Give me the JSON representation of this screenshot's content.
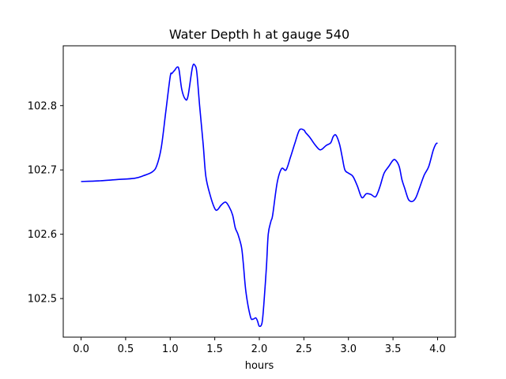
{
  "chart_data": {
    "type": "line",
    "title": "Water Depth h at gauge 540",
    "xlabel": "hours",
    "ylabel": "",
    "xlim": [
      -0.2,
      4.2
    ],
    "ylim": [
      102.44,
      102.893
    ],
    "x_ticks": [
      0.0,
      0.5,
      1.0,
      1.5,
      2.0,
      2.5,
      3.0,
      3.5,
      4.0
    ],
    "x_tick_labels": [
      "0.0",
      "0.5",
      "1.0",
      "1.5",
      "2.0",
      "2.5",
      "3.0",
      "3.5",
      "4.0"
    ],
    "y_ticks": [
      102.5,
      102.6,
      102.7,
      102.8
    ],
    "y_tick_labels": [
      "102.5",
      "102.6",
      "102.7",
      "102.8"
    ],
    "grid": false,
    "series": [
      {
        "color": "#0000ff",
        "x": [
          0.0,
          0.2,
          0.4,
          0.6,
          0.7,
          0.8,
          0.85,
          0.9,
          0.95,
          1.0,
          1.02,
          1.05,
          1.08,
          1.1,
          1.13,
          1.17,
          1.2,
          1.25,
          1.28,
          1.3,
          1.33,
          1.37,
          1.4,
          1.45,
          1.5,
          1.53,
          1.57,
          1.62,
          1.66,
          1.7,
          1.73,
          1.76,
          1.8,
          1.82,
          1.85,
          1.9,
          1.93,
          1.96,
          1.98,
          2.0,
          2.03,
          2.05,
          2.08,
          2.1,
          2.13,
          2.15,
          2.2,
          2.25,
          2.3,
          2.35,
          2.4,
          2.45,
          2.5,
          2.52,
          2.57,
          2.62,
          2.67,
          2.7,
          2.75,
          2.8,
          2.83,
          2.86,
          2.9,
          2.93,
          2.96,
          3.0,
          3.05,
          3.1,
          3.15,
          3.2,
          3.25,
          3.3,
          3.33,
          3.36,
          3.4,
          3.45,
          3.5,
          3.53,
          3.57,
          3.6,
          3.63,
          3.67,
          3.7,
          3.73,
          3.76,
          3.8,
          3.85,
          3.9,
          3.95,
          3.98,
          4.0
        ],
        "y": [
          102.682,
          102.683,
          102.685,
          102.687,
          102.691,
          102.697,
          102.707,
          102.735,
          102.79,
          102.845,
          102.85,
          102.855,
          102.86,
          102.855,
          102.825,
          102.81,
          102.815,
          102.86,
          102.862,
          102.85,
          102.8,
          102.74,
          102.69,
          102.66,
          102.64,
          102.638,
          102.645,
          102.65,
          102.643,
          102.63,
          102.61,
          102.6,
          102.58,
          102.555,
          102.51,
          102.472,
          102.468,
          102.47,
          102.465,
          102.457,
          102.462,
          102.49,
          102.55,
          102.6,
          102.62,
          102.63,
          102.68,
          102.702,
          102.7,
          102.72,
          102.742,
          102.762,
          102.762,
          102.758,
          102.75,
          102.74,
          102.732,
          102.732,
          102.738,
          102.742,
          102.752,
          102.754,
          102.74,
          102.72,
          102.7,
          102.695,
          102.69,
          102.675,
          102.657,
          102.663,
          102.662,
          102.658,
          102.665,
          102.677,
          102.695,
          102.705,
          102.715,
          102.715,
          102.705,
          102.685,
          102.672,
          102.655,
          102.651,
          102.652,
          102.658,
          102.673,
          102.692,
          102.705,
          102.73,
          102.74,
          102.742
        ]
      }
    ]
  }
}
